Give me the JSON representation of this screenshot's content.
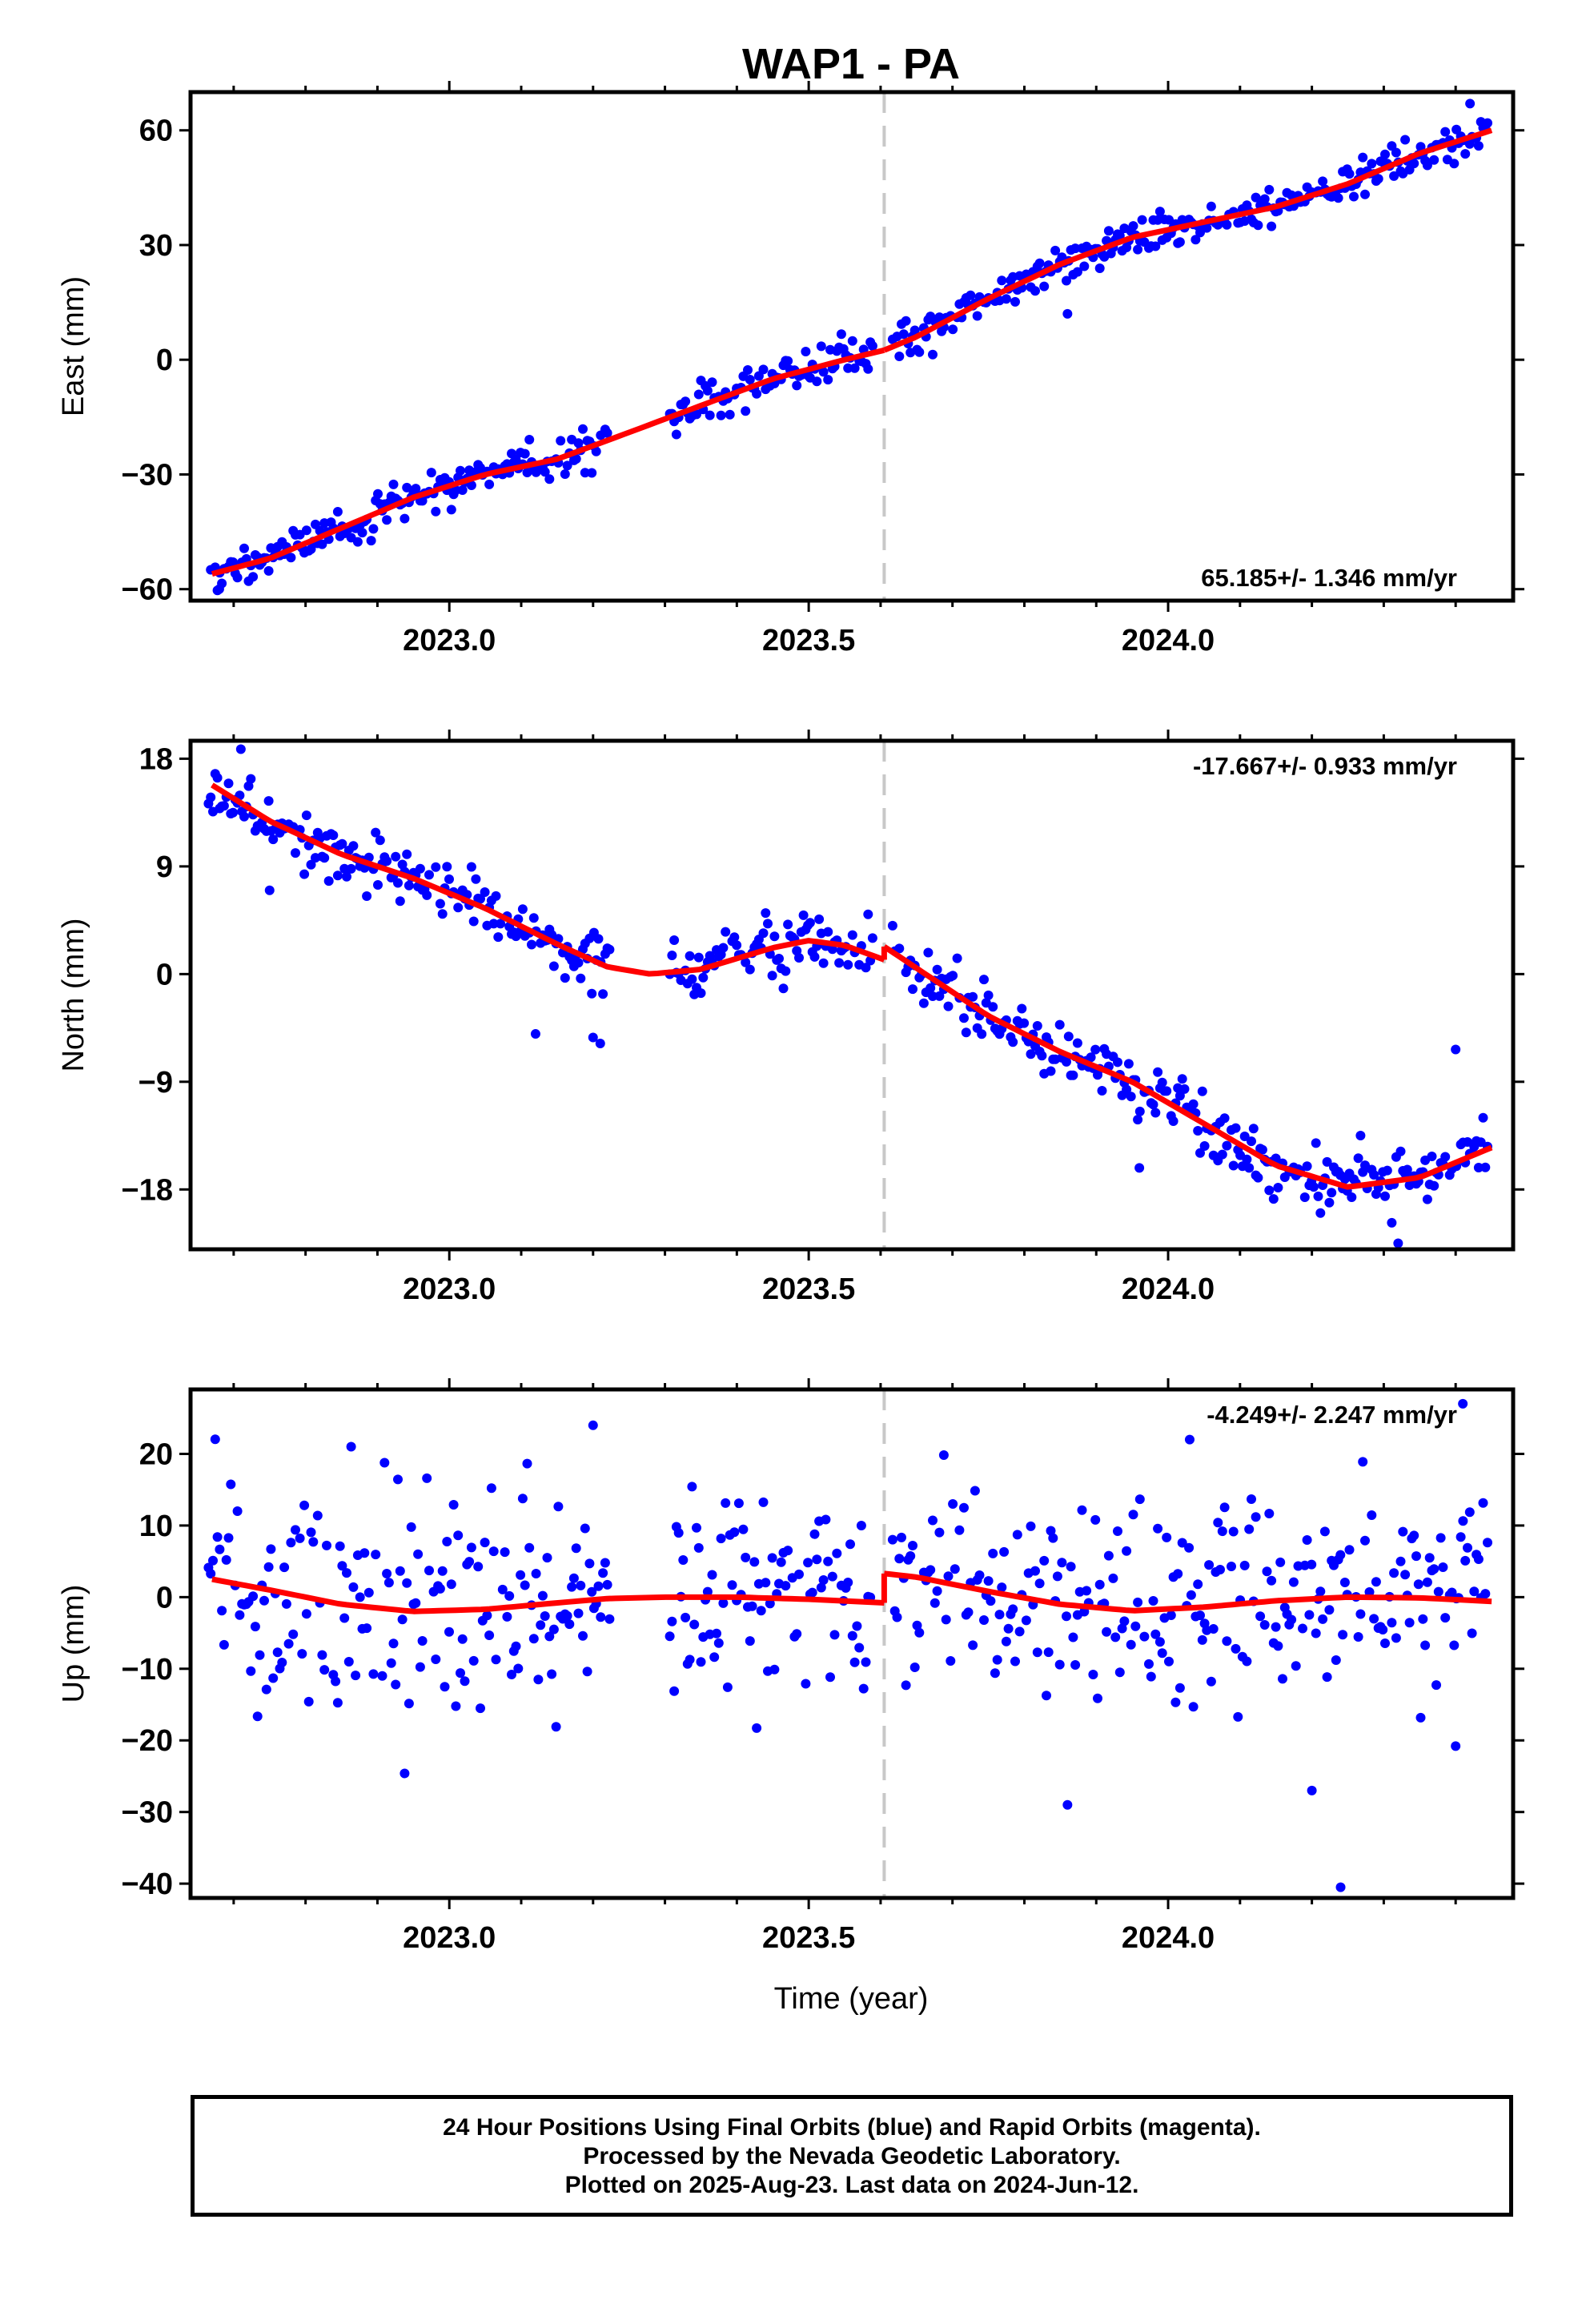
{
  "title": "WAP1 - PA",
  "xlabel": "Time (year)",
  "caption": {
    "line1": "24 Hour Positions Using Final Orbits (blue) and Rapid Orbits (magenta).",
    "line2": "Processed by the Nevada Geodetic Laboratory.",
    "line3": "Plotted on 2025-Aug-23. Last data on 2024-Jun-12."
  },
  "colors": {
    "points": "#0000ff",
    "fit": "#ff0000",
    "break_line": "#c8c8c8"
  },
  "chart_data": [
    {
      "type": "scatter",
      "name": "east",
      "ylabel": "East (mm)",
      "rate_label": "65.185+/- 1.346 mm/yr",
      "rate_position": "bottom-right",
      "xlim": [
        2022.64,
        2024.48
      ],
      "ylim": [
        -63,
        70
      ],
      "xticks": [
        2023.0,
        2023.5,
        2024.0
      ],
      "xtick_labels": [
        "2023.0",
        "2023.5",
        "2024.0"
      ],
      "yticks": [
        -60,
        -30,
        0,
        30,
        60
      ],
      "ytick_labels": [
        "−60",
        "−30",
        "0",
        "30",
        "60"
      ],
      "break_x": 2023.605,
      "fit": {
        "segment1": [
          [
            2022.67,
            -56
          ],
          [
            2022.75,
            -52
          ],
          [
            2022.85,
            -44
          ],
          [
            2022.95,
            -36
          ],
          [
            2023.05,
            -30
          ],
          [
            2023.15,
            -26
          ],
          [
            2023.25,
            -19
          ],
          [
            2023.35,
            -12
          ],
          [
            2023.45,
            -5
          ],
          [
            2023.55,
            0
          ],
          [
            2023.605,
            2.5
          ]
        ],
        "segment2": [
          [
            2023.605,
            2.5
          ],
          [
            2023.65,
            6
          ],
          [
            2023.75,
            16
          ],
          [
            2023.85,
            25
          ],
          [
            2023.95,
            32
          ],
          [
            2024.05,
            36
          ],
          [
            2024.15,
            40
          ],
          [
            2024.25,
            46
          ],
          [
            2024.35,
            54
          ],
          [
            2024.45,
            60
          ]
        ]
      },
      "points_model": {
        "gaps": [
          [
            2023.225,
            2023.305
          ],
          [
            2023.59,
            2023.615
          ]
        ],
        "noise_sd": 2.4,
        "outliers": [
          [
            2022.68,
            -60
          ],
          [
            2023.86,
            12
          ],
          [
            2024.42,
            67
          ]
        ]
      }
    },
    {
      "type": "scatter",
      "name": "north",
      "ylabel": "North (mm)",
      "rate_label": "-17.667+/- 0.933 mm/yr",
      "rate_position": "top-right",
      "xlim": [
        2022.64,
        2024.48
      ],
      "ylim": [
        -23,
        19.5
      ],
      "xticks": [
        2023.0,
        2023.5,
        2024.0
      ],
      "xtick_labels": [
        "2023.0",
        "2023.5",
        "2024.0"
      ],
      "yticks": [
        -18,
        -9,
        0,
        9,
        18
      ],
      "ytick_labels": [
        "−18",
        "−9",
        "0",
        "9",
        "18"
      ],
      "break_x": 2023.605,
      "fit": {
        "segment1": [
          [
            2022.67,
            15.8
          ],
          [
            2022.75,
            12.8
          ],
          [
            2022.85,
            10
          ],
          [
            2022.95,
            8
          ],
          [
            2023.05,
            5.5
          ],
          [
            2023.15,
            2.5
          ],
          [
            2023.22,
            0.6
          ],
          [
            2023.28,
            0
          ],
          [
            2023.35,
            0.4
          ],
          [
            2023.45,
            2.2
          ],
          [
            2023.5,
            2.8
          ],
          [
            2023.55,
            2.4
          ],
          [
            2023.605,
            1.2
          ]
        ],
        "segment2": [
          [
            2023.605,
            2.3
          ],
          [
            2023.65,
            0.5
          ],
          [
            2023.75,
            -3.5
          ],
          [
            2023.85,
            -6.5
          ],
          [
            2023.95,
            -9
          ],
          [
            2024.05,
            -12.5
          ],
          [
            2024.15,
            -16
          ],
          [
            2024.25,
            -17.8
          ],
          [
            2024.35,
            -17
          ],
          [
            2024.45,
            -14.5
          ]
        ]
      },
      "points_model": {
        "gaps": [
          [
            2023.225,
            2023.305
          ],
          [
            2023.59,
            2023.615
          ]
        ],
        "noise_sd": 1.3,
        "outliers": [
          [
            2022.71,
            18.8
          ],
          [
            2022.75,
            7
          ],
          [
            2023.12,
            -5
          ],
          [
            2023.2,
            -5.3
          ],
          [
            2023.21,
            -5.8
          ],
          [
            2024.32,
            -22.5
          ],
          [
            2024.4,
            -6.3
          ],
          [
            2023.96,
            -16.2
          ]
        ]
      }
    },
    {
      "type": "scatter",
      "name": "up",
      "ylabel": "Up (mm)",
      "rate_label": "-4.249+/- 2.247 mm/yr",
      "rate_position": "top-right",
      "xlim": [
        2022.64,
        2024.48
      ],
      "ylim": [
        -42,
        29
      ],
      "xticks": [
        2023.0,
        2023.5,
        2024.0
      ],
      "xtick_labels": [
        "2023.0",
        "2023.5",
        "2024.0"
      ],
      "yticks": [
        -40,
        -30,
        -20,
        -10,
        0,
        10,
        20
      ],
      "ytick_labels": [
        "−40",
        "−30",
        "−20",
        "−10",
        "0",
        "10",
        "20"
      ],
      "break_x": 2023.605,
      "fit": {
        "segment1": [
          [
            2022.67,
            2.5
          ],
          [
            2022.75,
            1
          ],
          [
            2022.85,
            -1
          ],
          [
            2022.95,
            -2
          ],
          [
            2023.05,
            -1.7
          ],
          [
            2023.15,
            -0.8
          ],
          [
            2023.22,
            -0.2
          ],
          [
            2023.3,
            0
          ],
          [
            2023.4,
            0
          ],
          [
            2023.5,
            -0.3
          ],
          [
            2023.605,
            -0.8
          ]
        ],
        "segment2": [
          [
            2023.605,
            3.3
          ],
          [
            2023.65,
            2.8
          ],
          [
            2023.75,
            0.8
          ],
          [
            2023.85,
            -1
          ],
          [
            2023.95,
            -1.9
          ],
          [
            2024.05,
            -1.4
          ],
          [
            2024.15,
            -0.5
          ],
          [
            2024.25,
            0
          ],
          [
            2024.35,
            -0.1
          ],
          [
            2024.45,
            -0.6
          ]
        ]
      },
      "points_model": {
        "gaps": [
          [
            2023.225,
            2023.305
          ],
          [
            2023.59,
            2023.615
          ]
        ],
        "noise_sd": 7.5,
        "outliers": [
          [
            2024.24,
            -40.5
          ],
          [
            2023.2,
            24
          ],
          [
            2023.86,
            -29
          ],
          [
            2024.2,
            -27
          ],
          [
            2024.41,
            27
          ],
          [
            2024.03,
            22
          ],
          [
            2024.4,
            -20.8
          ]
        ]
      }
    }
  ]
}
